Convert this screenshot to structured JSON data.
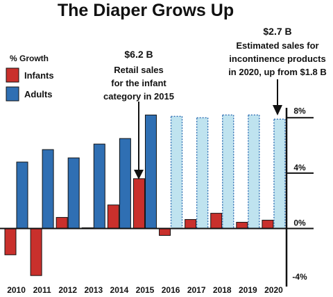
{
  "chart_data": {
    "type": "bar",
    "title": "The Diaper Grows Up",
    "ylabel": "% Growth",
    "categories": [
      "2010",
      "2011",
      "2012",
      "2013",
      "2014",
      "2015",
      "2016",
      "2017",
      "2018",
      "2019",
      "2020"
    ],
    "ylim": [
      -4,
      8.5
    ],
    "yticks": [
      {
        "value": 8,
        "label": "8%"
      },
      {
        "value": 4,
        "label": "4%"
      },
      {
        "value": 0,
        "label": "0%"
      },
      {
        "value": -4,
        "label": "-4%"
      }
    ],
    "legend": {
      "placement": "top-left"
    },
    "series": [
      {
        "name": "Infants",
        "color": "#c9302c",
        "values": [
          -1.9,
          -3.4,
          0.8,
          0.05,
          1.7,
          3.6,
          -0.5,
          0.65,
          1.1,
          0.45,
          0.6
        ]
      },
      {
        "name": "Adults",
        "color": "#2f6fb3",
        "forecast_color": "#bfe3ef",
        "forecast_from_index": 6,
        "values": [
          4.8,
          5.7,
          5.1,
          6.1,
          6.5,
          8.2,
          8.1,
          8.0,
          8.2,
          8.2,
          7.9
        ]
      }
    ],
    "annotations": [
      {
        "value": "$6.2 B",
        "text": [
          "Retail sales",
          "for the infant",
          "category in 2015"
        ],
        "target_category": "2015"
      },
      {
        "value": "$2.7 B",
        "text": [
          "Estimated sales for",
          "incontinence products",
          "in 2020, up from $1.8 B"
        ],
        "target_category": "2020"
      }
    ]
  }
}
